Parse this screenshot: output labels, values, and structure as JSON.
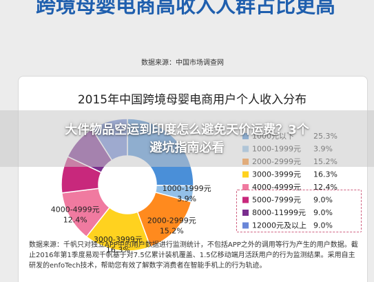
{
  "page": {
    "headline": "跨境母婴电商高收入人群占比更高",
    "source_top": "数据来源：中国市场调查网",
    "overlay_title_line1": "大件物品空运到印度怎么避免天价运费？3个",
    "overlay_title_line2": "避坑指南必看",
    "bottom_note": "数据来源：千帆只对独立APP中的用户数据进行监测统计，不包括APP之外的调用等行为产生的用户数据。截止2016年第1季度易观千帆基于对7.5亿累计装机覆盖、1.5亿移动端月活跃用户的行为监测结果。采用自主研发的enfoTech技术，帮助您有效了解数字消费者在智能手机上的行为轨迹。"
  },
  "chart_data": {
    "type": "pie",
    "title": "2015年中国跨境母婴电商用户个人收入分布",
    "categories": [
      "1000元以下",
      "1000-1999元",
      "2000-2999元",
      "3000-3999元",
      "4000-4999元",
      "5000-7999元",
      "8000-11999元",
      "12000元及以上"
    ],
    "values": [
      25.3,
      3.9,
      15.2,
      16.3,
      12.4,
      9.0,
      9.0,
      9.0
    ],
    "value_labels": [
      "25.3%",
      "3.9%",
      "15.2%",
      "16.3%",
      "12.4%",
      "9.0%",
      "9.0%",
      "9.0%"
    ],
    "colors": [
      "#4a8fd8",
      "#93c0e8",
      "#ff8a1e",
      "#ffd21f",
      "#f07aa0",
      "#c8287c",
      "#7a2e8e",
      "#6a86d8"
    ],
    "slice_labels": {
      "1000-1999元": "1000-1999元",
      "2000-2999元": "2000-2999元",
      "3000-3999元": "3000-3999元",
      "4000-4999元": "4000-4999元"
    },
    "style": "donut",
    "legend_position": "right"
  }
}
